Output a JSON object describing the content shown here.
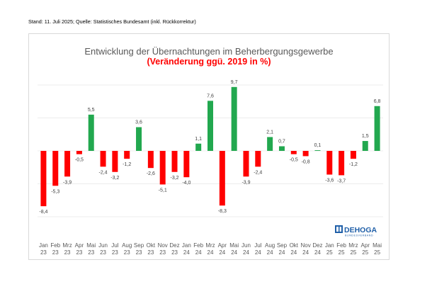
{
  "source_note": "Stand: 11. Juli 2025; Quelle: Statistisches Bundesamt (inkl. Rückkorrektur)",
  "logo": {
    "name": "DEHOGA",
    "sub": "BUNDESVERBAND",
    "color": "#1f5fa8"
  },
  "colors": {
    "positive": "#22a84f",
    "negative": "#ff0000",
    "title": "#595959",
    "subtitle": "#ff0000",
    "grid": "#d9d9d9"
  },
  "chart_data": {
    "type": "bar",
    "title": "Entwicklung der Übernachtungen im Beherbergungsgewerbe",
    "subtitle": "(Veränderung ggü. 2019 in %)",
    "xlabel": "",
    "ylabel": "",
    "ylim": [
      -10,
      12
    ],
    "grid": true,
    "categories": [
      "Jan 23",
      "Feb 23",
      "Mrz 23",
      "Apr 23",
      "Mai 23",
      "Jun 23",
      "Jul 23",
      "Aug 23",
      "Sep 23",
      "Okt 23",
      "Nov 23",
      "Dez 23",
      "Jan 24",
      "Feb 24",
      "Mrz 24",
      "Apr 24",
      "Mai 24",
      "Jun 24",
      "Jul 24",
      "Aug 24",
      "Sep 24",
      "Okt 24",
      "Nov 24",
      "Dez 24",
      "Jan 25",
      "Feb 25",
      "Mrz 25",
      "Apr 25",
      "Mai 25"
    ],
    "values": [
      -8.4,
      -5.3,
      -3.9,
      -0.5,
      5.5,
      -2.4,
      -3.2,
      -1.2,
      3.6,
      -2.6,
      -5.1,
      -3.2,
      -4.0,
      1.1,
      7.6,
      -8.3,
      9.7,
      -3.9,
      -2.4,
      2.1,
      0.7,
      -0.5,
      -0.8,
      0.1,
      -3.6,
      -3.7,
      -1.2,
      1.5,
      6.8
    ],
    "value_labels": [
      "-8,4",
      "-5,3",
      "-3,9",
      "-0,5",
      "5,5",
      "-2,4",
      "-3,2",
      "-1,2",
      "3,6",
      "-2,6",
      "-5,1",
      "-3,2",
      "-4,0",
      "1,1",
      "7,6",
      "-8,3",
      "9,7",
      "-3,9",
      "-2,4",
      "2,1",
      "0,7",
      "-0,5",
      "-0,8",
      "0,1",
      "-3,6",
      "-3,7",
      "-1,2",
      "1,5",
      "6,8"
    ]
  }
}
